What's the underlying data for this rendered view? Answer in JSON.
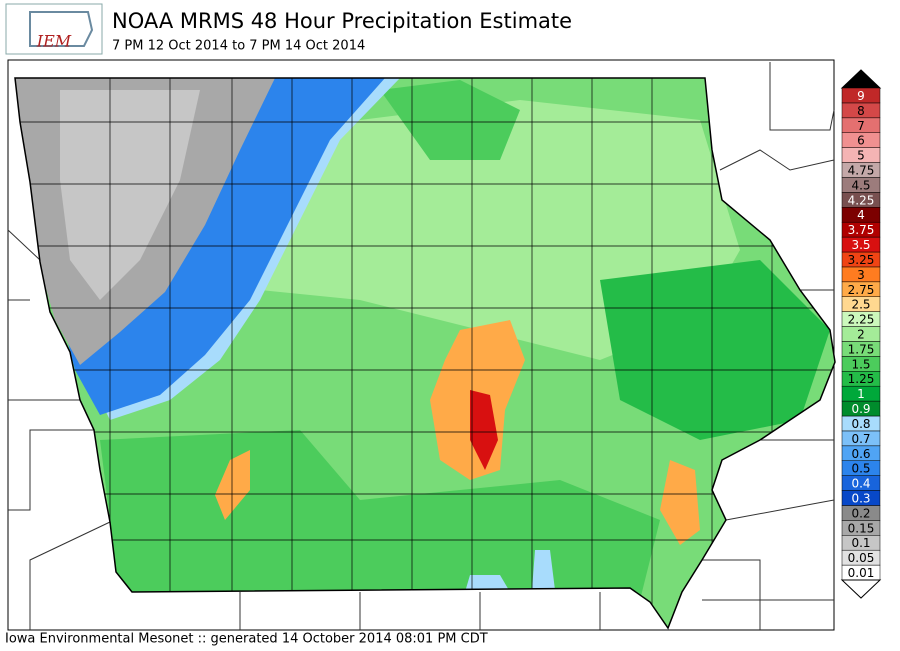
{
  "header": {
    "logo": "IEM",
    "title": "NOAA MRMS 48 Hour Precipitation Estimate",
    "subtitle": "7 PM 12 Oct 2014 to 7 PM 14 Oct 2014"
  },
  "legend": {
    "items": [
      {
        "label": "0.01",
        "color": "#ffffff"
      },
      {
        "label": "0.05",
        "color": "#e2e2e2"
      },
      {
        "label": "0.1",
        "color": "#c6c6c6"
      },
      {
        "label": "0.15",
        "color": "#a8a8a8"
      },
      {
        "label": "0.2",
        "color": "#8a8a8a"
      },
      {
        "label": "0.3",
        "color": "#0848c8"
      },
      {
        "label": "0.4",
        "color": "#1864dc"
      },
      {
        "label": "0.5",
        "color": "#2c84ec"
      },
      {
        "label": "0.6",
        "color": "#50a4f4"
      },
      {
        "label": "0.7",
        "color": "#7cc0f8"
      },
      {
        "label": "0.8",
        "color": "#a8dcfc"
      },
      {
        "label": "0.9",
        "color": "#008c2c"
      },
      {
        "label": "1",
        "color": "#00a83a"
      },
      {
        "label": "1.25",
        "color": "#24bc48"
      },
      {
        "label": "1.5",
        "color": "#4ccc5c"
      },
      {
        "label": "1.75",
        "color": "#78dc78"
      },
      {
        "label": "2",
        "color": "#a4ec98"
      },
      {
        "label": "2.25",
        "color": "#ccf8bc"
      },
      {
        "label": "2.5",
        "color": "#ffd890"
      },
      {
        "label": "2.75",
        "color": "#ffaa48"
      },
      {
        "label": "3",
        "color": "#ff7c20"
      },
      {
        "label": "3.25",
        "color": "#f04414"
      },
      {
        "label": "3.5",
        "color": "#d81010"
      },
      {
        "label": "3.75",
        "color": "#b00000"
      },
      {
        "label": "4",
        "color": "#7c0000"
      },
      {
        "label": "4.25",
        "color": "#785050"
      },
      {
        "label": "4.5",
        "color": "#9c7c7c"
      },
      {
        "label": "4.75",
        "color": "#c4a8a8"
      },
      {
        "label": "5",
        "color": "#f4b4b4"
      },
      {
        "label": "6",
        "color": "#f09090"
      },
      {
        "label": "7",
        "color": "#e47070"
      },
      {
        "label": "8",
        "color": "#d44848"
      },
      {
        "label": "9",
        "color": "#c02828"
      }
    ]
  },
  "footer": "Iowa Environmental Mesonet :: generated 14 October 2014 08:01 PM CDT"
}
